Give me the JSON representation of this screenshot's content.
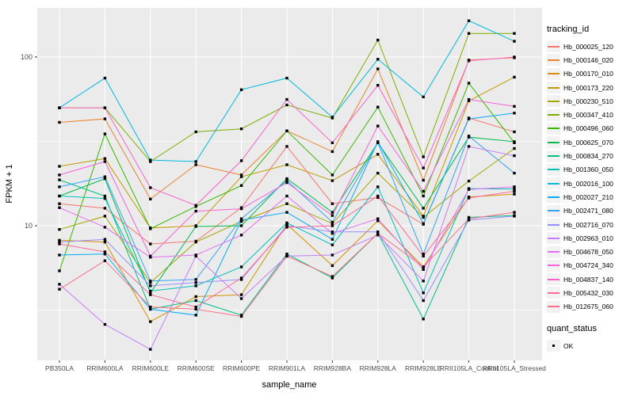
{
  "chart_data": {
    "type": "line",
    "title": "",
    "xlabel": "sample_name",
    "ylabel": "FPKM + 1",
    "y_scale": "log10",
    "ylim_approx": [
      1.6,
      200
    ],
    "y_major_ticks": [
      100,
      10
    ],
    "y_minor_gridlines": [
      31.6,
      3.16
    ],
    "grid": "on",
    "panel_bg": "#EBEBEB",
    "grid_color": "#FFFFFF",
    "axis_text_color": "#4D4D4D",
    "point_shape": "square",
    "point_color": "#000000",
    "legend_position": "right",
    "categories": [
      "PB350LA",
      "RRIM600LA",
      "RRIM600LE",
      "RRIM600SE",
      "RRIM600PE",
      "RRIM901LA",
      "RRIM928BA",
      "RRIM928LA",
      "RRIM928LE",
      "RRII105LA_Control",
      "RRII105LA_Stressed"
    ],
    "series": [
      {
        "name": "Hb_000025_120",
        "color": "#F8766D",
        "values": [
          13.5,
          12.7,
          7.8,
          8.1,
          12.8,
          29.5,
          13.5,
          14.7,
          10.2,
          43.5,
          36
        ]
      },
      {
        "name": "Hb_000146_020",
        "color": "#EA8331",
        "values": [
          41,
          43,
          14.4,
          23,
          20,
          36.5,
          27.5,
          85,
          18.6,
          96,
          99
        ]
      },
      {
        "name": "Hb_000170_010",
        "color": "#D89000",
        "values": [
          8.2,
          8.0,
          2.7,
          3.8,
          3.9,
          10.2,
          5.8,
          10.7,
          5.7,
          14.8,
          15.4
        ]
      },
      {
        "name": "Hb_000173_220",
        "color": "#C09B00",
        "values": [
          22.5,
          25,
          9.7,
          10,
          19.5,
          23,
          18.5,
          26.5,
          11.4,
          55,
          76
        ]
      },
      {
        "name": "Hb_000230_510",
        "color": "#A3A500",
        "values": [
          9.5,
          11.4,
          4.6,
          8.0,
          10.6,
          13.5,
          10.3,
          20.5,
          11.2,
          18.4,
          28.7
        ]
      },
      {
        "name": "Hb_000347_410",
        "color": "#7CAE00",
        "values": [
          50,
          50,
          24,
          36,
          37.5,
          52,
          43.5,
          126,
          25.6,
          138,
          138
        ]
      },
      {
        "name": "Hb_000496_060",
        "color": "#39B600",
        "values": [
          5.4,
          35,
          9.6,
          13,
          17.3,
          36.5,
          20,
          50.5,
          15,
          70,
          31
        ]
      },
      {
        "name": "Hb_000625_070",
        "color": "#00BB4E",
        "values": [
          15,
          19,
          4.0,
          9.9,
          10,
          19,
          12,
          31,
          12.7,
          33.5,
          31.5
        ]
      },
      {
        "name": "Hb_000834_270",
        "color": "#00C087",
        "values": [
          18.7,
          15,
          3.2,
          3.6,
          2.95,
          6.8,
          4.9,
          9.0,
          2.8,
          11.2,
          11.5
        ]
      },
      {
        "name": "Hb_001360_050",
        "color": "#00C0B8",
        "values": [
          15,
          14.5,
          4.1,
          4.4,
          5.7,
          10.4,
          7.7,
          17,
          4.0,
          16.6,
          16.5
        ]
      },
      {
        "name": "Hb_002016_100",
        "color": "#00BAE0",
        "values": [
          50,
          75,
          24.5,
          24,
          64,
          75,
          44,
          97,
          58,
          164,
          124
        ]
      },
      {
        "name": "Hb_002027_210",
        "color": "#00ACFC",
        "values": [
          6.7,
          6.8,
          3.2,
          2.95,
          10.8,
          12,
          8.3,
          31.5,
          10.3,
          43,
          46.5
        ]
      },
      {
        "name": "Hb_002471_080",
        "color": "#35A2FF",
        "values": [
          17,
          19.5,
          4.7,
          4.8,
          11,
          18.5,
          10.5,
          31,
          6.8,
          34,
          20.5
        ]
      },
      {
        "name": "Hb_002716_070",
        "color": "#9590FF",
        "values": [
          8.0,
          8.3,
          4.4,
          4.6,
          4.8,
          10,
          9.2,
          9.2,
          3.6,
          10.8,
          11.4
        ]
      },
      {
        "name": "Hb_002963_010",
        "color": "#C77CFF",
        "values": [
          4.5,
          2.6,
          1.85,
          6.6,
          3.7,
          6.6,
          6.7,
          8.8,
          4.7,
          29.5,
          26
        ]
      },
      {
        "name": "Hb_004678_050",
        "color": "#E76BF3",
        "values": [
          12.8,
          9.8,
          6.5,
          6.7,
          8.8,
          15,
          9.0,
          11,
          5.5,
          16.4,
          17
        ]
      },
      {
        "name": "Hb_004724_340",
        "color": "#FA62DB",
        "values": [
          20,
          24,
          6.6,
          12.2,
          12.6,
          18,
          11.5,
          39,
          16,
          56,
          51
        ]
      },
      {
        "name": "Hb_004837_140",
        "color": "#FF61C9",
        "values": [
          50,
          50,
          16.8,
          13.2,
          24.3,
          56,
          31,
          68,
          22,
          95,
          100
        ]
      },
      {
        "name": "Hb_005432_030",
        "color": "#FF6A98",
        "values": [
          7.8,
          7.0,
          3.9,
          3.3,
          4.9,
          9.8,
          10,
          15,
          6.6,
          14.6,
          16
        ]
      },
      {
        "name": "Hb_012675_060",
        "color": "#FD6F87",
        "values": [
          4.2,
          6.2,
          3.3,
          3.2,
          2.9,
          6.6,
          5.0,
          9.0,
          5.7,
          11.0,
          12
        ]
      }
    ],
    "legend": {
      "color_title": "tracking_id",
      "shape_title": "quant_status",
      "shape_items": [
        {
          "label": "OK"
        }
      ]
    }
  }
}
